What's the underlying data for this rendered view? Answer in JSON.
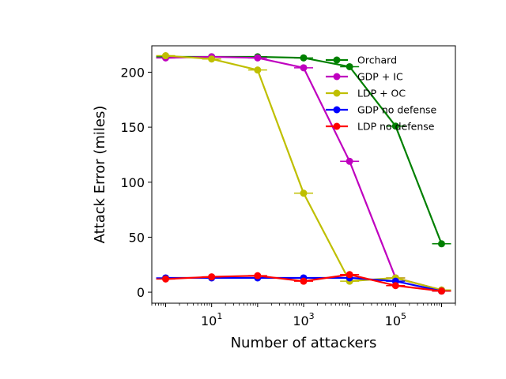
{
  "chart_data": {
    "type": "line",
    "title": "",
    "xlabel": "Number of attackers",
    "ylabel": "Attack Error (miles)",
    "xscale": "log",
    "xlim": [
      0.5,
      2000000
    ],
    "ylim": [
      -10,
      224
    ],
    "xticks": [
      {
        "value": 10,
        "base": "10",
        "exp": "1"
      },
      {
        "value": 1000,
        "base": "10",
        "exp": "3"
      },
      {
        "value": 100000,
        "base": "10",
        "exp": "5"
      }
    ],
    "yticks": [
      0,
      50,
      100,
      150,
      200
    ],
    "grid": false,
    "legend_position": "top-right",
    "x": [
      1,
      10,
      100,
      1000,
      10000,
      100000,
      1000000
    ],
    "series": [
      {
        "name": "Orchard",
        "color": "#008000",
        "values": [
          214,
          214,
          214,
          213,
          205,
          151,
          44
        ]
      },
      {
        "name": "GDP + IC",
        "color": "#bf00bf",
        "values": [
          213,
          214,
          213,
          204,
          119,
          13,
          2
        ]
      },
      {
        "name": "LDP + OC",
        "color": "#bfbf00",
        "values": [
          215,
          212,
          202,
          90,
          10,
          13,
          2
        ]
      },
      {
        "name": "GDP no defense",
        "color": "#0000ff",
        "values": [
          13,
          13,
          13,
          13,
          13,
          10,
          1
        ]
      },
      {
        "name": "LDP no defense",
        "color": "#ff0000",
        "values": [
          12,
          14,
          15,
          10,
          16,
          6,
          1
        ]
      }
    ]
  }
}
